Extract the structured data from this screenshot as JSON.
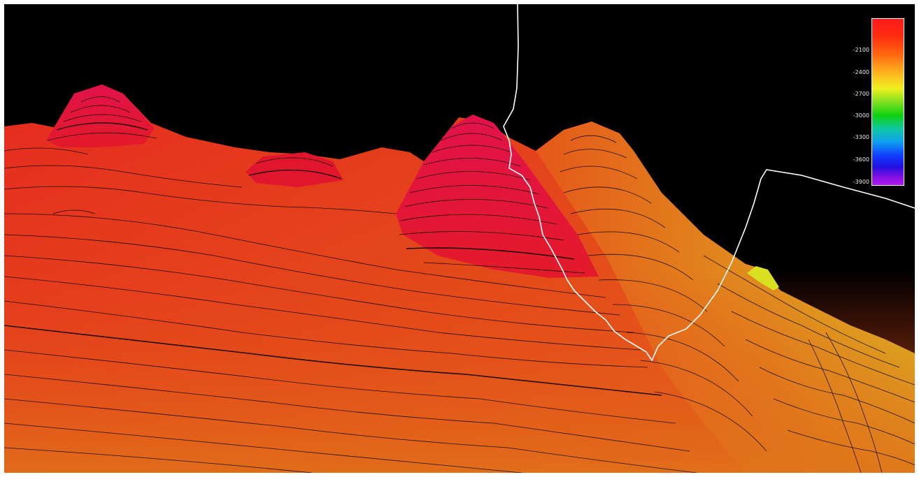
{
  "scene": {
    "background": "#000000",
    "terrain_palette": [
      "#e0102e",
      "#e62118",
      "#e9441a",
      "#e56a1a",
      "#e09020",
      "#dccc20"
    ],
    "contour_color": "#000000",
    "track_color": "#ffffff"
  },
  "legend": {
    "ticks": [
      "-2100",
      "-2400",
      "-2700",
      "-3000",
      "-3300",
      "-3600",
      "-3900"
    ],
    "colors": [
      "#ff1a1a",
      "#ff9020",
      "#e8f020",
      "#10d010",
      "#10b8e0",
      "#1040ff",
      "#9010e8"
    ]
  }
}
